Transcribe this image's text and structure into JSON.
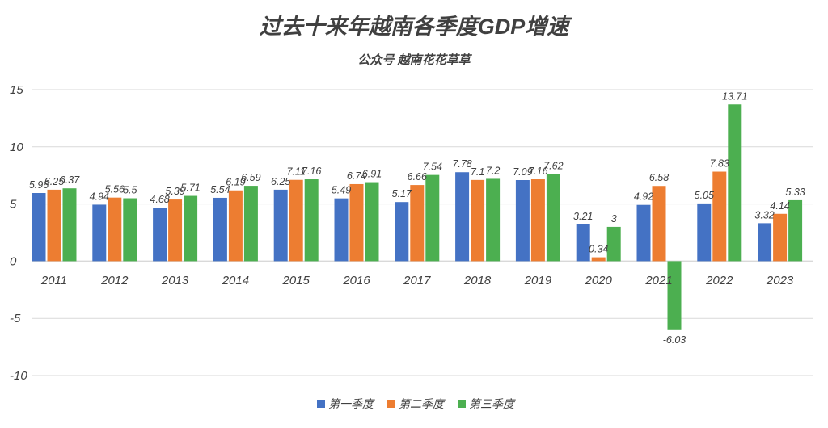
{
  "chart_data": {
    "type": "bar",
    "title": "过去十来年越南各季度GDP增速",
    "subtitle": "公众号 越南花花草草",
    "categories": [
      "2011",
      "2012",
      "2013",
      "2014",
      "2015",
      "2016",
      "2017",
      "2018",
      "2019",
      "2020",
      "2021",
      "2022",
      "2023"
    ],
    "series": [
      {
        "name": "第一季度",
        "color": "#4472c4",
        "values": [
          5.96,
          4.94,
          4.68,
          5.54,
          6.25,
          5.49,
          5.17,
          7.78,
          7.09,
          3.21,
          4.92,
          5.05,
          3.32
        ]
      },
      {
        "name": "第二季度",
        "color": "#ed7d31",
        "values": [
          6.25,
          5.56,
          5.39,
          6.19,
          7.11,
          6.74,
          6.66,
          7.1,
          7.16,
          0.34,
          6.58,
          7.83,
          4.14
        ]
      },
      {
        "name": "第三季度",
        "color": "#4caf50",
        "values": [
          6.37,
          5.5,
          5.71,
          6.59,
          7.16,
          6.91,
          7.54,
          7.2,
          7.62,
          3,
          -6.03,
          13.71,
          5.33
        ]
      }
    ],
    "ylim": [
      -10,
      15
    ],
    "yticks": [
      15,
      10,
      5,
      0,
      -5,
      -10
    ],
    "grid": true,
    "legend": "bottom",
    "xlabel": "",
    "ylabel": ""
  }
}
